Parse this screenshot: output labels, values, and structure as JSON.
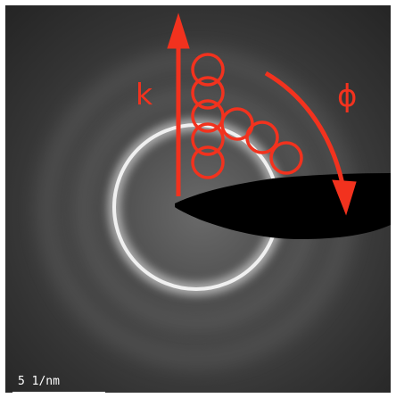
{
  "annotations": {
    "k_label": "k",
    "phi_label": "ϕ",
    "color": "#f2321e"
  },
  "scale_bar": {
    "label": "5 1/nm",
    "color": "#ffffff"
  },
  "pattern": {
    "background": "#2a2a2a",
    "ring_color": "#ffffff",
    "beam_stop_color": "#000000"
  }
}
